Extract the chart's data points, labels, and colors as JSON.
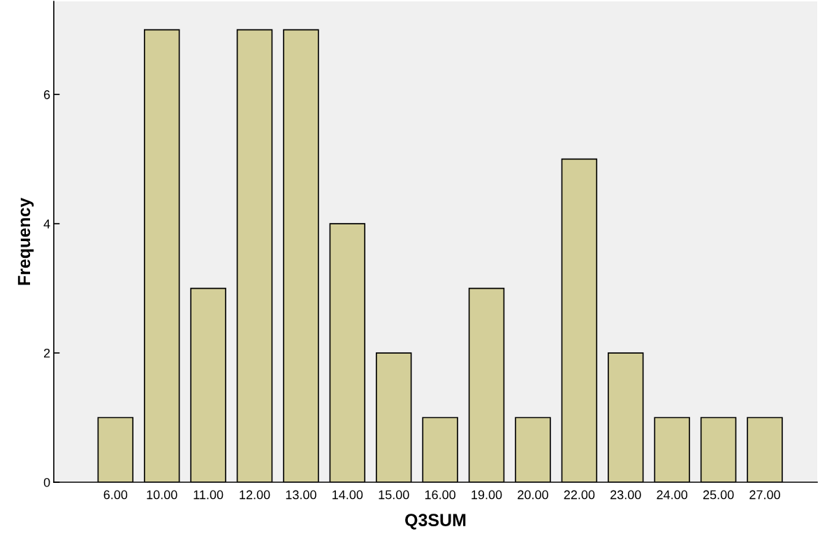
{
  "chart_data": {
    "type": "bar",
    "xlabel": "Q3SUM",
    "ylabel": "Frequency",
    "categories": [
      "6.00",
      "10.00",
      "11.00",
      "12.00",
      "13.00",
      "14.00",
      "15.00",
      "16.00",
      "19.00",
      "20.00",
      "22.00",
      "23.00",
      "24.00",
      "25.00",
      "27.00"
    ],
    "values": [
      1,
      7,
      3,
      7,
      7,
      4,
      2,
      1,
      3,
      1,
      5,
      2,
      1,
      1,
      1
    ],
    "color": "#d4cf99",
    "ylim": [
      0,
      7.44
    ],
    "yticks": [
      0,
      2,
      4,
      6
    ],
    "grid": false,
    "legend": false
  }
}
